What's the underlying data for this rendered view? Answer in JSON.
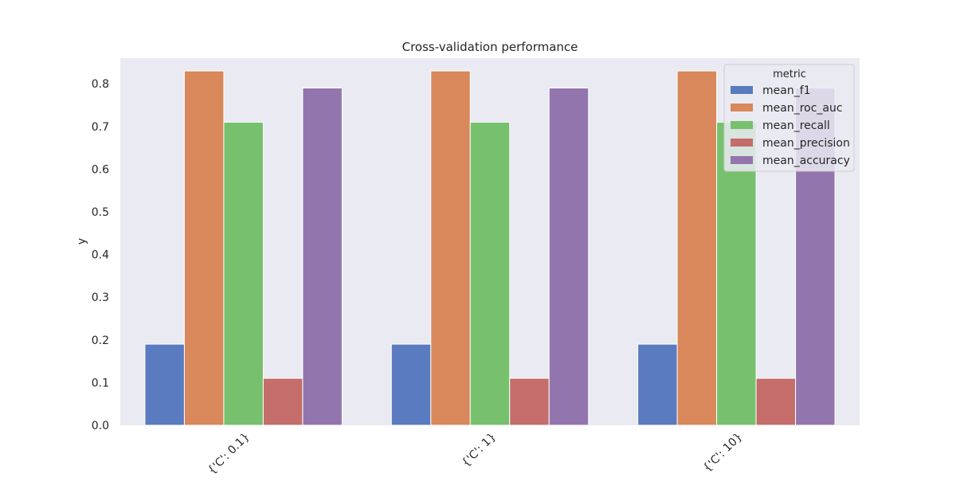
{
  "chart_data": {
    "type": "bar",
    "title": "Cross-validation performance",
    "xlabel": "",
    "ylabel": "y",
    "ylim": [
      0,
      0.86
    ],
    "yticks": [
      0.0,
      0.1,
      0.2,
      0.3,
      0.4,
      0.5,
      0.6,
      0.7,
      0.8
    ],
    "grid": false,
    "categories": [
      "{'C': 0.1}",
      "{'C': 1}",
      "{'C': 10}"
    ],
    "legend": {
      "title": "metric",
      "placement": "top-right"
    },
    "series": [
      {
        "name": "mean_f1",
        "color": "#5a7bbf",
        "values": [
          0.19,
          0.19,
          0.19
        ]
      },
      {
        "name": "mean_roc_auc",
        "color": "#d8885a",
        "values": [
          0.83,
          0.83,
          0.83
        ]
      },
      {
        "name": "mean_recall",
        "color": "#76c06e",
        "values": [
          0.71,
          0.71,
          0.71
        ]
      },
      {
        "name": "mean_precision",
        "color": "#c46d6a",
        "values": [
          0.11,
          0.11,
          0.11
        ]
      },
      {
        "name": "mean_accuracy",
        "color": "#9375ae",
        "values": [
          0.79,
          0.79,
          0.79
        ]
      }
    ],
    "plot_background": "#eaeaf2"
  }
}
